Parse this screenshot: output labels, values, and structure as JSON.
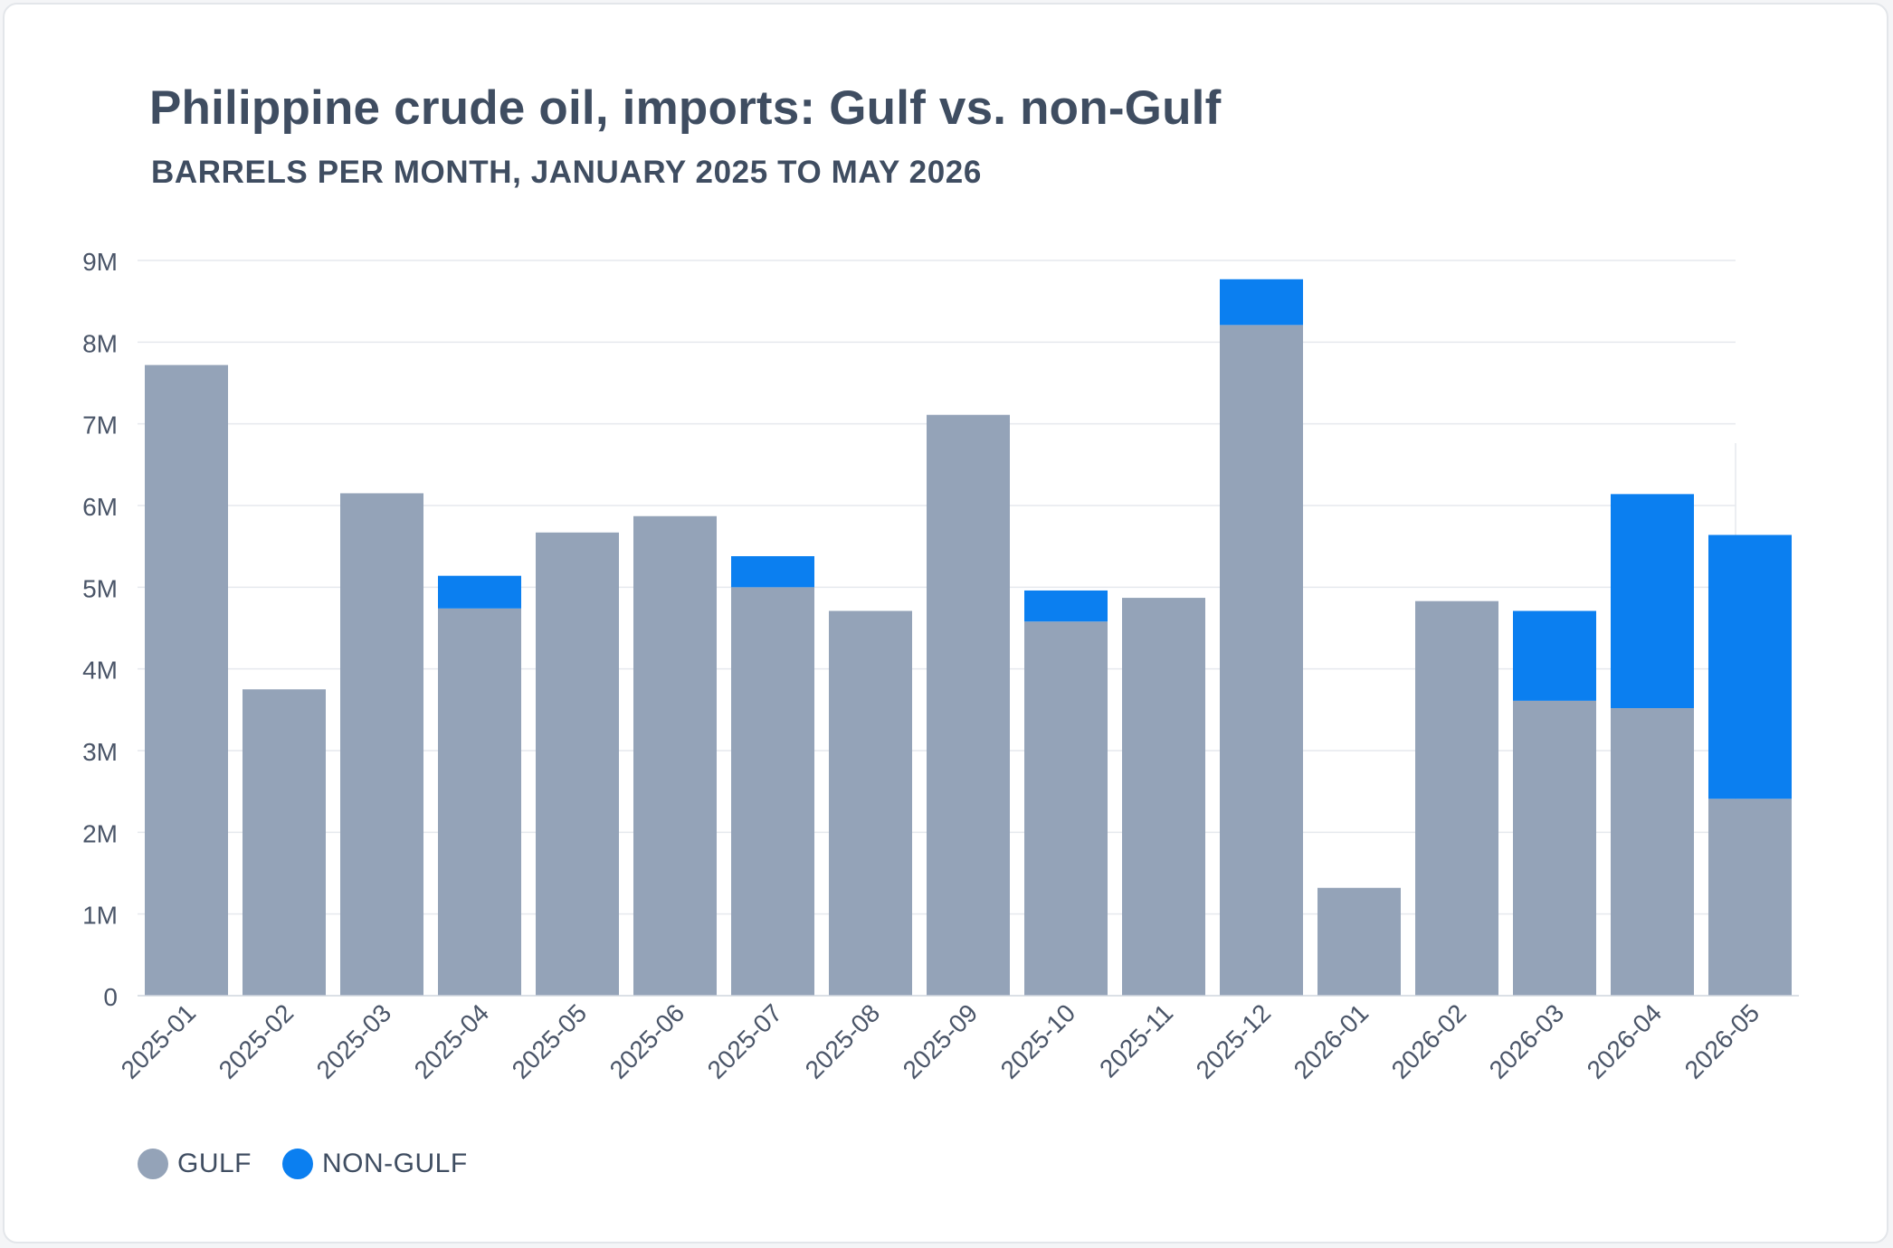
{
  "chart_data": {
    "type": "bar",
    "stacked": true,
    "title": "Philippine crude oil, imports: Gulf vs. non-Gulf",
    "subtitle": "BARRELS PER MONTH, JANUARY 2025 TO MAY 2026",
    "categories": [
      "2025-01",
      "2025-02",
      "2025-03",
      "2025-04",
      "2025-05",
      "2025-06",
      "2025-07",
      "2025-08",
      "2025-09",
      "2025-10",
      "2025-11",
      "2025-12",
      "2026-01",
      "2026-02",
      "2026-03",
      "2026-04",
      "2026-05"
    ],
    "series": [
      {
        "name": "GULF",
        "color": "#94a3b8",
        "values": [
          7720000,
          3750000,
          6150000,
          4740000,
          5670000,
          5870000,
          5000000,
          4710000,
          7110000,
          4580000,
          4870000,
          8210000,
          1320000,
          4830000,
          3610000,
          3520000,
          2410000
        ]
      },
      {
        "name": "NON-GULF",
        "color": "#0b7ff0",
        "values": [
          0,
          0,
          0,
          400000,
          0,
          0,
          380000,
          0,
          0,
          380000,
          0,
          560000,
          0,
          0,
          1100000,
          2620000,
          3230000
        ]
      }
    ],
    "yticks": [
      "0",
      "1M",
      "2M",
      "3M",
      "4M",
      "5M",
      "6M",
      "7M",
      "8M",
      "9M"
    ],
    "ylim": [
      0,
      9000000
    ],
    "grid": true,
    "legend": "bottom-left"
  }
}
